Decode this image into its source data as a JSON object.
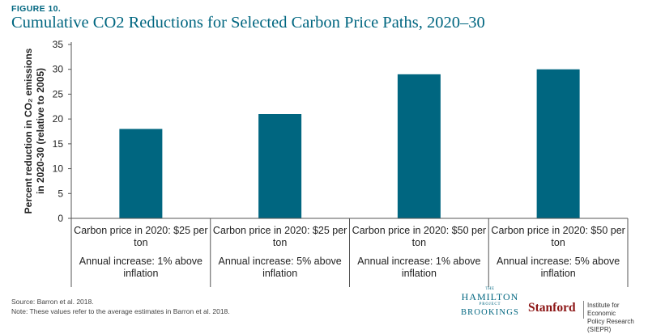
{
  "figure_label": "FIGURE 10.",
  "title": "Cumulative CO2 Reductions for Selected Carbon Price Paths, 2020–30",
  "chart_data": {
    "type": "bar",
    "title": "Cumulative CO2 Reductions for Selected Carbon Price Paths, 2020–30",
    "ylabel_line1": "Percent reduction in CO₂ emissions",
    "ylabel_line2": "in 2020-30 (relative to 2005)",
    "xlabel": "",
    "categories": [
      {
        "line1": "Carbon price in 2020: $25 per ton",
        "line2": "Annual increase: 1% above inflation"
      },
      {
        "line1": "Carbon price in 2020: $25 per ton",
        "line2": "Annual increase: 5% above inflation"
      },
      {
        "line1": "Carbon price in 2020: $50 per ton",
        "line2": "Annual increase: 1% above inflation"
      },
      {
        "line1": "Carbon price in 2020: $50 per ton",
        "line2": "Annual increase: 5% above inflation"
      }
    ],
    "values": [
      18,
      21,
      29,
      30
    ],
    "ylim": [
      0,
      35
    ],
    "yticks": [
      0,
      5,
      10,
      15,
      20,
      25,
      30,
      35
    ],
    "grid": false,
    "legend": "none",
    "bar_color": "#006680"
  },
  "footer": {
    "source": "Source: Barron et al. 2018.",
    "note": "Note: These values refer to the average estimates in Barron et al. 2018."
  },
  "logos": {
    "hamilton_the": "THE",
    "hamilton_name": "HAMILTON",
    "hamilton_project": "PROJECT",
    "brookings": "BROOKINGS",
    "stanford": "Stanford",
    "siepr_line1": "Institute for Economic",
    "siepr_line2": "Policy Research (SIEPR)"
  }
}
